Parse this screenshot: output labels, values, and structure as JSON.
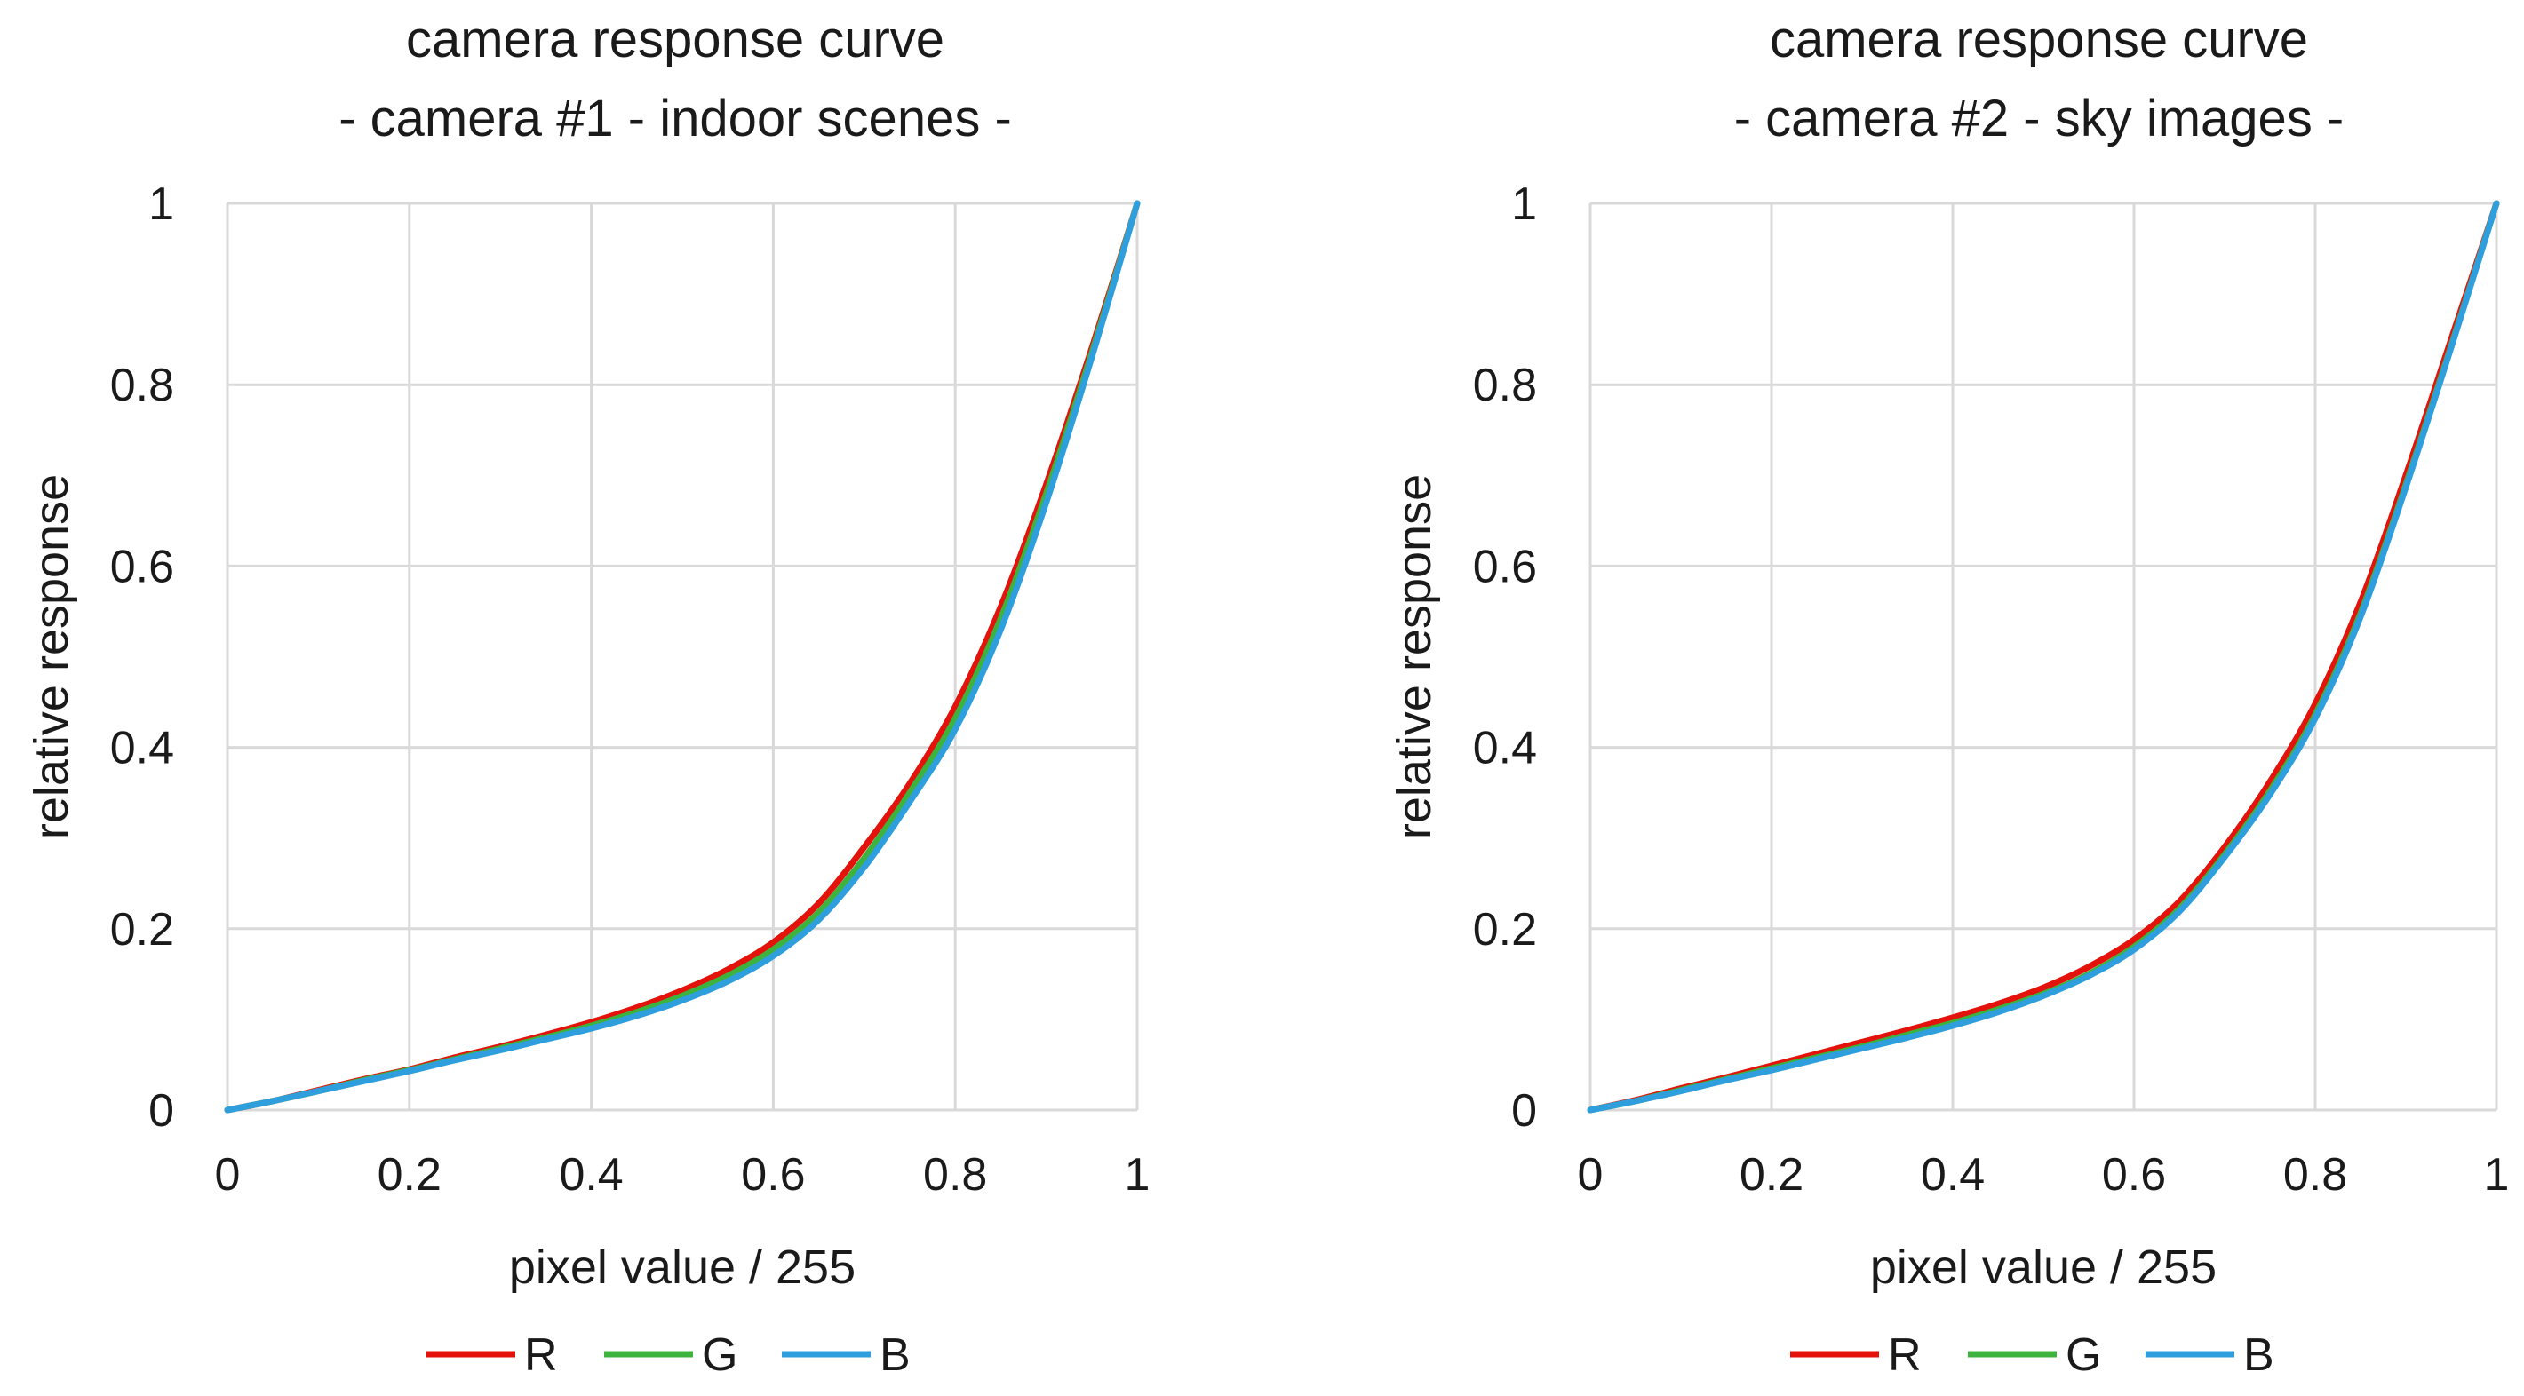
{
  "chart_data": [
    {
      "type": "line",
      "title": "camera response curve",
      "subtitle": "- camera #1 - indoor scenes -",
      "xlabel": "pixel value / 255",
      "ylabel": "relative response",
      "xlim": [
        0,
        1
      ],
      "ylim": [
        0,
        1
      ],
      "xticks": [
        "0",
        "0.2",
        "0.4",
        "0.6",
        "0.8",
        "1"
      ],
      "yticks": [
        "0",
        "0.2",
        "0.4",
        "0.6",
        "0.8",
        "1"
      ],
      "grid": true,
      "legend": "bottom",
      "x": [
        0,
        0.05,
        0.1,
        0.15,
        0.2,
        0.25,
        0.3,
        0.35,
        0.4,
        0.45,
        0.5,
        0.55,
        0.6,
        0.65,
        0.7,
        0.75,
        0.8,
        0.85,
        0.9,
        0.95,
        1
      ],
      "series": [
        {
          "name": "R",
          "color": "#e3120b",
          "values": [
            0,
            0.01,
            0.022,
            0.034,
            0.045,
            0.058,
            0.07,
            0.083,
            0.097,
            0.113,
            0.132,
            0.155,
            0.185,
            0.228,
            0.29,
            0.36,
            0.445,
            0.555,
            0.69,
            0.84,
            1
          ]
        },
        {
          "name": "G",
          "color": "#3db33d",
          "values": [
            0,
            0.01,
            0.021,
            0.033,
            0.044,
            0.056,
            0.068,
            0.08,
            0.093,
            0.108,
            0.126,
            0.148,
            0.177,
            0.218,
            0.278,
            0.35,
            0.432,
            0.542,
            0.68,
            0.835,
            1
          ]
        },
        {
          "name": "B",
          "color": "#2e9fdc",
          "values": [
            0,
            0.01,
            0.021,
            0.032,
            0.043,
            0.055,
            0.066,
            0.078,
            0.09,
            0.104,
            0.121,
            0.142,
            0.17,
            0.21,
            0.268,
            0.34,
            0.42,
            0.53,
            0.67,
            0.83,
            1
          ]
        }
      ]
    },
    {
      "type": "line",
      "title": "camera response curve",
      "subtitle": "- camera #2 - sky images -",
      "xlabel": "pixel value / 255",
      "ylabel": "relative response",
      "xlim": [
        0,
        1
      ],
      "ylim": [
        0,
        1
      ],
      "xticks": [
        "0",
        "0.2",
        "0.4",
        "0.6",
        "0.8",
        "1"
      ],
      "yticks": [
        "0",
        "0.2",
        "0.4",
        "0.6",
        "0.8",
        "1"
      ],
      "grid": true,
      "legend": "bottom",
      "x": [
        0,
        0.05,
        0.1,
        0.15,
        0.2,
        0.25,
        0.3,
        0.35,
        0.4,
        0.45,
        0.5,
        0.55,
        0.6,
        0.65,
        0.7,
        0.75,
        0.8,
        0.85,
        0.9,
        0.95,
        1
      ],
      "series": [
        {
          "name": "R",
          "color": "#e3120b",
          "values": [
            0,
            0.011,
            0.024,
            0.036,
            0.049,
            0.062,
            0.075,
            0.088,
            0.102,
            0.117,
            0.135,
            0.158,
            0.188,
            0.23,
            0.29,
            0.362,
            0.448,
            0.56,
            0.7,
            0.85,
            1
          ]
        },
        {
          "name": "G",
          "color": "#3db33d",
          "values": [
            0,
            0.01,
            0.022,
            0.034,
            0.046,
            0.058,
            0.07,
            0.083,
            0.096,
            0.111,
            0.128,
            0.15,
            0.18,
            0.222,
            0.282,
            0.352,
            0.436,
            0.548,
            0.69,
            0.843,
            1
          ]
        },
        {
          "name": "B",
          "color": "#2e9fdc",
          "values": [
            0,
            0.01,
            0.021,
            0.033,
            0.044,
            0.056,
            0.068,
            0.08,
            0.093,
            0.108,
            0.126,
            0.148,
            0.177,
            0.219,
            0.279,
            0.348,
            0.432,
            0.544,
            0.687,
            0.841,
            1
          ]
        }
      ]
    }
  ]
}
